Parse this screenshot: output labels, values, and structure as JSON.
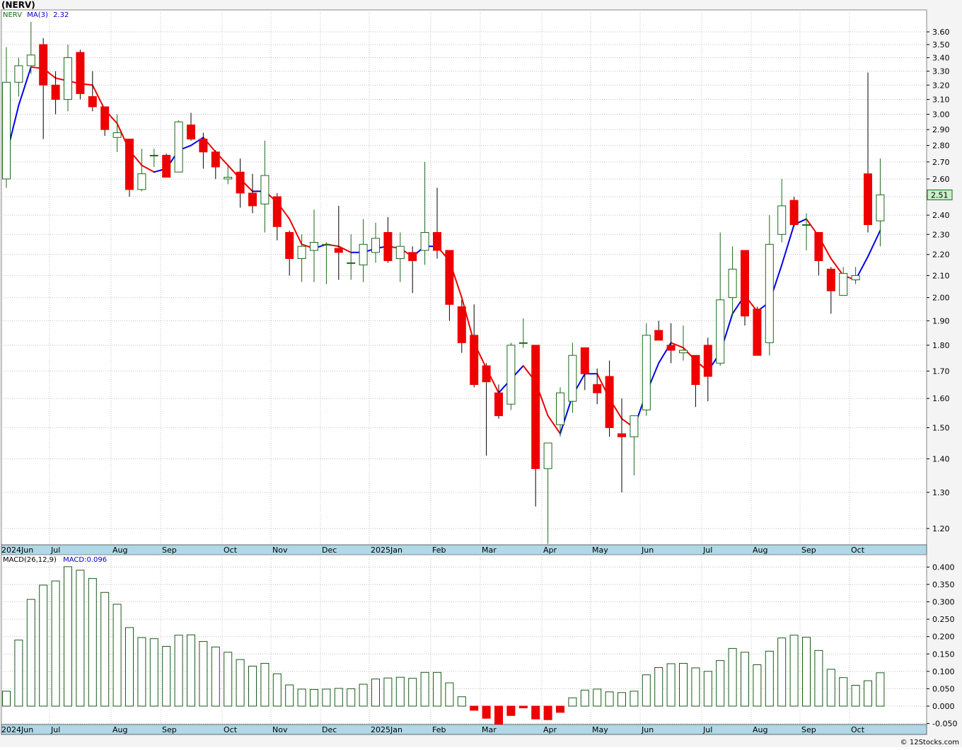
{
  "title": "(NERV)",
  "credit": "© 12Stocks.com",
  "colors": {
    "up_candle": "#1a6a1a",
    "down_candle": "#ee0000",
    "ma_up": "#0000ee",
    "ma_down": "#ee0000",
    "macd_bar": "#1a5a1a",
    "macd_neg_fill": "#ee0000",
    "grid": "#c0c0c0",
    "axis_band": "#b0d8e6",
    "last_price_box": "#c8f0c8"
  },
  "legend": {
    "symbol": "NERV",
    "ma_label": "MA(3)",
    "ma_value": "2.32",
    "macd_label": "MACD(26,12,9)",
    "macd_value": "MACD:0.096"
  },
  "last_price": "2.51",
  "chart_data": [
    {
      "type": "candlestick",
      "title": "(NERV)",
      "interval": "weekly",
      "y_scale": "log",
      "ylim": [
        1.15,
        3.75
      ],
      "y_ticks": [
        "1.20",
        "1.30",
        "1.40",
        "1.50",
        "1.60",
        "1.70",
        "1.80",
        "1.90",
        "2.00",
        "2.10",
        "2.20",
        "2.30",
        "2.40",
        "2.50",
        "2.60",
        "2.70",
        "2.80",
        "2.90",
        "3.00",
        "3.10",
        "3.20",
        "3.30",
        "3.40",
        "3.50",
        "3.60"
      ],
      "x_labels": [
        "2024Jun",
        "Jul",
        "Aug",
        "Sep",
        "Oct",
        "Nov",
        "Dec",
        "2025Jan",
        "Feb",
        "Mar",
        "Apr",
        "May",
        "Jun",
        "Jul",
        "Aug",
        "Sep",
        "Oct"
      ],
      "x_label_weeks": [
        0,
        4,
        9,
        13,
        18,
        22,
        26,
        30,
        35,
        39,
        44,
        48,
        52,
        57,
        61,
        65,
        69
      ],
      "ohlc": [
        [
          2.6,
          3.48,
          2.55,
          3.22
        ],
        [
          3.22,
          3.4,
          3.12,
          3.34
        ],
        [
          3.34,
          3.68,
          3.28,
          3.42
        ],
        [
          3.5,
          3.55,
          2.84,
          3.2
        ],
        [
          3.2,
          3.3,
          3.0,
          3.1
        ],
        [
          3.1,
          3.5,
          3.02,
          3.4
        ],
        [
          3.44,
          3.46,
          3.1,
          3.14
        ],
        [
          3.12,
          3.3,
          3.02,
          3.05
        ],
        [
          3.05,
          3.05,
          2.86,
          2.9
        ],
        [
          2.85,
          3.0,
          2.76,
          2.88
        ],
        [
          2.84,
          2.84,
          2.5,
          2.54
        ],
        [
          2.54,
          2.78,
          2.53,
          2.63
        ],
        [
          2.74,
          2.78,
          2.67,
          2.74
        ],
        [
          2.74,
          2.75,
          2.61,
          2.61
        ],
        [
          2.64,
          2.96,
          2.64,
          2.95
        ],
        [
          2.93,
          3.01,
          2.83,
          2.84
        ],
        [
          2.84,
          2.88,
          2.66,
          2.76
        ],
        [
          2.76,
          2.77,
          2.6,
          2.67
        ],
        [
          2.6,
          2.68,
          2.57,
          2.61
        ],
        [
          2.64,
          2.72,
          2.44,
          2.52
        ],
        [
          2.52,
          2.63,
          2.41,
          2.45
        ],
        [
          2.46,
          2.83,
          2.31,
          2.62
        ],
        [
          2.5,
          2.52,
          2.27,
          2.34
        ],
        [
          2.31,
          2.32,
          2.1,
          2.18
        ],
        [
          2.18,
          2.3,
          2.07,
          2.24
        ],
        [
          2.22,
          2.43,
          2.07,
          2.26
        ],
        [
          2.25,
          2.26,
          2.06,
          2.25
        ],
        [
          2.23,
          2.45,
          2.08,
          2.21
        ],
        [
          2.16,
          2.3,
          2.08,
          2.16
        ],
        [
          2.15,
          2.38,
          2.07,
          2.25
        ],
        [
          2.21,
          2.36,
          2.16,
          2.28
        ],
        [
          2.31,
          2.39,
          2.16,
          2.17
        ],
        [
          2.18,
          2.31,
          2.07,
          2.24
        ],
        [
          2.21,
          2.24,
          2.02,
          2.17
        ],
        [
          2.22,
          2.7,
          2.15,
          2.31
        ],
        [
          2.31,
          2.55,
          2.18,
          2.22
        ],
        [
          2.22,
          2.22,
          1.9,
          1.97
        ],
        [
          1.96,
          1.99,
          1.77,
          1.81
        ],
        [
          1.84,
          1.97,
          1.64,
          1.65
        ],
        [
          1.72,
          1.73,
          1.41,
          1.66
        ],
        [
          1.62,
          1.65,
          1.53,
          1.54
        ],
        [
          1.58,
          1.81,
          1.56,
          1.8
        ],
        [
          1.81,
          1.91,
          1.79,
          1.81
        ],
        [
          1.8,
          1.8,
          1.26,
          1.37
        ],
        [
          1.37,
          1.45,
          1.16,
          1.45
        ],
        [
          1.51,
          1.64,
          1.47,
          1.62
        ],
        [
          1.59,
          1.81,
          1.55,
          1.76
        ],
        [
          1.79,
          1.79,
          1.63,
          1.69
        ],
        [
          1.65,
          1.71,
          1.58,
          1.62
        ],
        [
          1.68,
          1.74,
          1.47,
          1.5
        ],
        [
          1.48,
          1.6,
          1.3,
          1.47
        ],
        [
          1.47,
          1.54,
          1.35,
          1.54
        ],
        [
          1.56,
          1.89,
          1.54,
          1.84
        ],
        [
          1.86,
          1.9,
          1.82,
          1.82
        ],
        [
          1.8,
          1.89,
          1.73,
          1.78
        ],
        [
          1.77,
          1.88,
          1.74,
          1.78
        ],
        [
          1.76,
          1.76,
          1.57,
          1.65
        ],
        [
          1.8,
          1.83,
          1.59,
          1.68
        ],
        [
          1.73,
          2.31,
          1.72,
          1.99
        ],
        [
          2.0,
          2.24,
          1.92,
          2.13
        ],
        [
          2.22,
          2.22,
          1.88,
          1.92
        ],
        [
          1.95,
          1.96,
          1.76,
          1.76
        ],
        [
          1.81,
          2.4,
          1.76,
          2.25
        ],
        [
          2.3,
          2.6,
          2.26,
          2.45
        ],
        [
          2.48,
          2.5,
          2.34,
          2.35
        ],
        [
          2.35,
          2.41,
          2.22,
          2.35
        ],
        [
          2.31,
          2.31,
          2.1,
          2.17
        ],
        [
          2.13,
          2.14,
          1.93,
          2.03
        ],
        [
          2.01,
          2.14,
          2.01,
          2.11
        ],
        [
          2.08,
          2.14,
          2.06,
          2.1
        ],
        [
          2.63,
          3.29,
          2.31,
          2.35
        ],
        [
          2.37,
          2.72,
          2.24,
          2.51
        ]
      ],
      "ma": [
        2.74,
        3.06,
        3.33,
        3.32,
        3.25,
        3.23,
        3.21,
        3.2,
        3.03,
        2.94,
        2.77,
        2.68,
        2.64,
        2.66,
        2.77,
        2.8,
        2.85,
        2.76,
        2.68,
        2.6,
        2.53,
        2.53,
        2.47,
        2.38,
        2.25,
        2.23,
        2.25,
        2.24,
        2.21,
        2.21,
        2.23,
        2.24,
        2.23,
        2.19,
        2.24,
        2.24,
        2.17,
        2.0,
        1.81,
        1.71,
        1.62,
        1.67,
        1.72,
        1.66,
        1.54,
        1.48,
        1.61,
        1.69,
        1.69,
        1.6,
        1.53,
        1.5,
        1.62,
        1.73,
        1.81,
        1.79,
        1.74,
        1.7,
        1.77,
        1.93,
        2.01,
        1.94,
        1.98,
        2.15,
        2.35,
        2.38,
        2.29,
        2.18,
        2.1,
        2.08,
        2.19,
        2.32
      ]
    },
    {
      "type": "bar",
      "title": "MACD(26,12,9)",
      "ylim": [
        -0.055,
        0.42
      ],
      "y_ticks": [
        "-0.050",
        "0.000",
        "0.050",
        "0.100",
        "0.150",
        "0.200",
        "0.250",
        "0.300",
        "0.350",
        "0.400"
      ],
      "values": [
        0.043,
        0.19,
        0.307,
        0.348,
        0.36,
        0.401,
        0.391,
        0.367,
        0.327,
        0.293,
        0.226,
        0.197,
        0.194,
        0.172,
        0.204,
        0.205,
        0.186,
        0.17,
        0.155,
        0.134,
        0.115,
        0.123,
        0.093,
        0.061,
        0.049,
        0.048,
        0.049,
        0.051,
        0.05,
        0.063,
        0.078,
        0.081,
        0.083,
        0.08,
        0.097,
        0.097,
        0.067,
        0.027,
        -0.012,
        -0.035,
        -0.052,
        -0.027,
        -0.005,
        -0.037,
        -0.039,
        -0.018,
        0.024,
        0.046,
        0.049,
        0.041,
        0.039,
        0.043,
        0.09,
        0.111,
        0.122,
        0.123,
        0.11,
        0.1,
        0.131,
        0.166,
        0.155,
        0.119,
        0.158,
        0.196,
        0.204,
        0.198,
        0.16,
        0.106,
        0.082,
        0.06,
        0.073,
        0.096
      ]
    }
  ]
}
